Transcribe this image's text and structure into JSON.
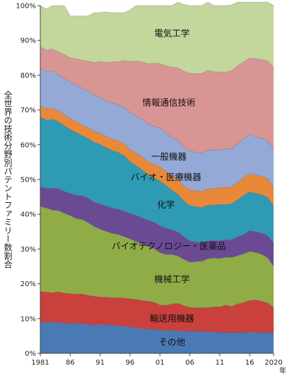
{
  "chart_data": {
    "type": "area",
    "stacked": true,
    "ylabel": "全世界の技術分野別パテントファミリー数割合",
    "xlabel_unit": "年",
    "ylim": [
      0,
      100
    ],
    "y_ticks": [
      "0%",
      "10%",
      "20%",
      "30%",
      "40%",
      "50%",
      "60%",
      "70%",
      "80%",
      "90%",
      "100%"
    ],
    "x_ticks": [
      {
        "year": 1981,
        "label": "1981"
      },
      {
        "year": 1986,
        "label": "86"
      },
      {
        "year": 1991,
        "label": "91"
      },
      {
        "year": 1996,
        "label": "96"
      },
      {
        "year": 2001,
        "label": "01"
      },
      {
        "year": 2006,
        "label": "06"
      },
      {
        "year": 2011,
        "label": "11"
      },
      {
        "year": 2016,
        "label": "16"
      },
      {
        "year": 2020,
        "label": "2020"
      }
    ],
    "x": [
      1981,
      1982,
      1983,
      1984,
      1985,
      1986,
      1987,
      1988,
      1989,
      1990,
      1991,
      1992,
      1993,
      1994,
      1995,
      1996,
      1997,
      1998,
      1999,
      2000,
      2001,
      2002,
      2003,
      2004,
      2005,
      2006,
      2007,
      2008,
      2009,
      2010,
      2011,
      2012,
      2013,
      2014,
      2015,
      2016,
      2017,
      2018,
      2019,
      2020
    ],
    "series": [
      {
        "name": "その他",
        "color": "#4a7ab5",
        "values": [
          8.8,
          8.9,
          9.0,
          8.9,
          8.7,
          8.6,
          8.6,
          8.5,
          8.4,
          8.2,
          8.3,
          8.3,
          8.1,
          8.0,
          7.8,
          7.6,
          7.3,
          7.1,
          7.0,
          6.8,
          6.7,
          6.6,
          6.6,
          6.5,
          6.4,
          6.3,
          6.3,
          6.3,
          6.2,
          6.1,
          6.0,
          6.0,
          6.0,
          6.0,
          6.0,
          6.1,
          6.0,
          6.0,
          5.9,
          5.9
        ]
      },
      {
        "name": "輸送用機器",
        "color": "#c9403c",
        "values": [
          9.0,
          8.7,
          8.4,
          8.8,
          8.6,
          8.6,
          8.4,
          8.6,
          8.3,
          8.2,
          7.9,
          7.8,
          7.9,
          8.0,
          8.1,
          8.1,
          8.2,
          8.1,
          8.0,
          7.9,
          7.2,
          7.2,
          7.6,
          7.9,
          7.3,
          6.9,
          6.8,
          6.8,
          7.0,
          7.2,
          7.3,
          7.9,
          7.5,
          8.2,
          8.6,
          9.1,
          9.4,
          9.0,
          8.6,
          7.3
        ]
      },
      {
        "name": "機械工学",
        "color": "#8fac46",
        "values": [
          24.5,
          24.2,
          23.8,
          23.4,
          23.0,
          22.4,
          21.8,
          21.4,
          20.9,
          20.1,
          19.5,
          19.0,
          18.5,
          18.2,
          17.7,
          17.2,
          16.7,
          16.2,
          15.7,
          15.4,
          15.1,
          14.6,
          14.2,
          13.6,
          13.3,
          13.0,
          13.3,
          13.4,
          14.0,
          14.1,
          14.0,
          13.7,
          14.1,
          13.9,
          14.0,
          14.1,
          13.6,
          13.5,
          13.0,
          11.8
        ]
      },
      {
        "name": "バイオテクノロジー・医薬品",
        "color": "#6b4a94",
        "values": [
          5.6,
          5.7,
          6.3,
          6.3,
          6.3,
          6.4,
          6.7,
          6.8,
          7.1,
          7.0,
          7.3,
          7.3,
          7.3,
          7.3,
          7.3,
          7.3,
          7.5,
          7.6,
          7.6,
          7.6,
          7.7,
          7.6,
          7.2,
          6.9,
          6.5,
          6.1,
          5.6,
          5.3,
          5.1,
          5.1,
          5.1,
          5.0,
          5.1,
          5.4,
          5.6,
          6.0,
          6.0,
          6.1,
          6.4,
          6.7
        ]
      },
      {
        "name": "化学",
        "color": "#2f9ab4",
        "values": [
          20.1,
          19.6,
          19.8,
          19.3,
          18.9,
          18.4,
          18.0,
          17.3,
          17.1,
          17.2,
          17.1,
          16.8,
          16.5,
          16.3,
          16.0,
          14.9,
          14.3,
          13.8,
          13.1,
          12.7,
          12.9,
          12.3,
          11.3,
          10.9,
          10.3,
          10.2,
          10.2,
          10.1,
          10.3,
          10.1,
          10.4,
          10.2,
          10.3,
          10.7,
          11.2,
          11.2,
          11.0,
          11.0,
          11.0,
          10.6
        ]
      },
      {
        "name": "バイオ・医療機器",
        "color": "#e8893a",
        "values": [
          3.1,
          3.2,
          3.2,
          3.1,
          3.1,
          3.1,
          3.2,
          3.1,
          3.1,
          3.1,
          3.2,
          3.2,
          3.3,
          3.3,
          3.4,
          3.5,
          3.6,
          3.7,
          3.8,
          3.9,
          4.0,
          4.1,
          4.2,
          4.3,
          4.4,
          4.5,
          4.6,
          4.6,
          4.7,
          4.8,
          4.8,
          4.9,
          4.9,
          5.0,
          5.1,
          5.2,
          5.2,
          5.3,
          5.3,
          5.3
        ]
      },
      {
        "name": "一般機器",
        "color": "#94a9d6",
        "values": [
          11.0,
          10.8,
          10.7,
          10.5,
          10.4,
          10.5,
          10.5,
          10.6,
          10.5,
          10.4,
          10.3,
          10.3,
          10.4,
          10.5,
          10.5,
          10.7,
          10.7,
          10.9,
          10.9,
          11.0,
          11.2,
          11.0,
          11.0,
          11.2,
          11.0,
          11.3,
          11.0,
          11.2,
          11.2,
          11.0,
          11.0,
          11.1,
          11.0,
          11.2,
          11.2,
          11.3,
          11.1,
          11.0,
          11.0,
          11.1
        ]
      },
      {
        "name": "情報通信技術",
        "color": "#d99594",
        "values": [
          6.1,
          6.1,
          6.3,
          6.4,
          6.9,
          7.0,
          7.5,
          8.0,
          8.6,
          9.4,
          10.3,
          10.9,
          11.8,
          12.3,
          13.4,
          14.6,
          15.8,
          16.4,
          17.2,
          18.1,
          18.5,
          19.3,
          20.2,
          20.8,
          21.9,
          22.3,
          22.6,
          22.8,
          22.9,
          22.6,
          22.3,
          22.1,
          22.4,
          22.3,
          22.1,
          21.9,
          22.4,
          22.6,
          22.9,
          23.4
        ]
      },
      {
        "name": "電気工学",
        "color": "#c3d69b",
        "values": [
          11.8,
          11.8,
          12.5,
          13.3,
          14.1,
          12.0,
          12.3,
          12.7,
          13.0,
          14.4,
          14.1,
          14.6,
          14.2,
          14.1,
          13.8,
          14.8,
          15.9,
          16.2,
          16.7,
          16.6,
          16.7,
          17.3,
          17.7,
          18.9,
          19.2,
          19.4,
          19.6,
          19.5,
          19.6,
          19.0,
          19.1,
          19.1,
          18.9,
          18.3,
          17.2,
          16.1,
          16.3,
          16.5,
          16.9,
          17.9
        ]
      }
    ]
  }
}
